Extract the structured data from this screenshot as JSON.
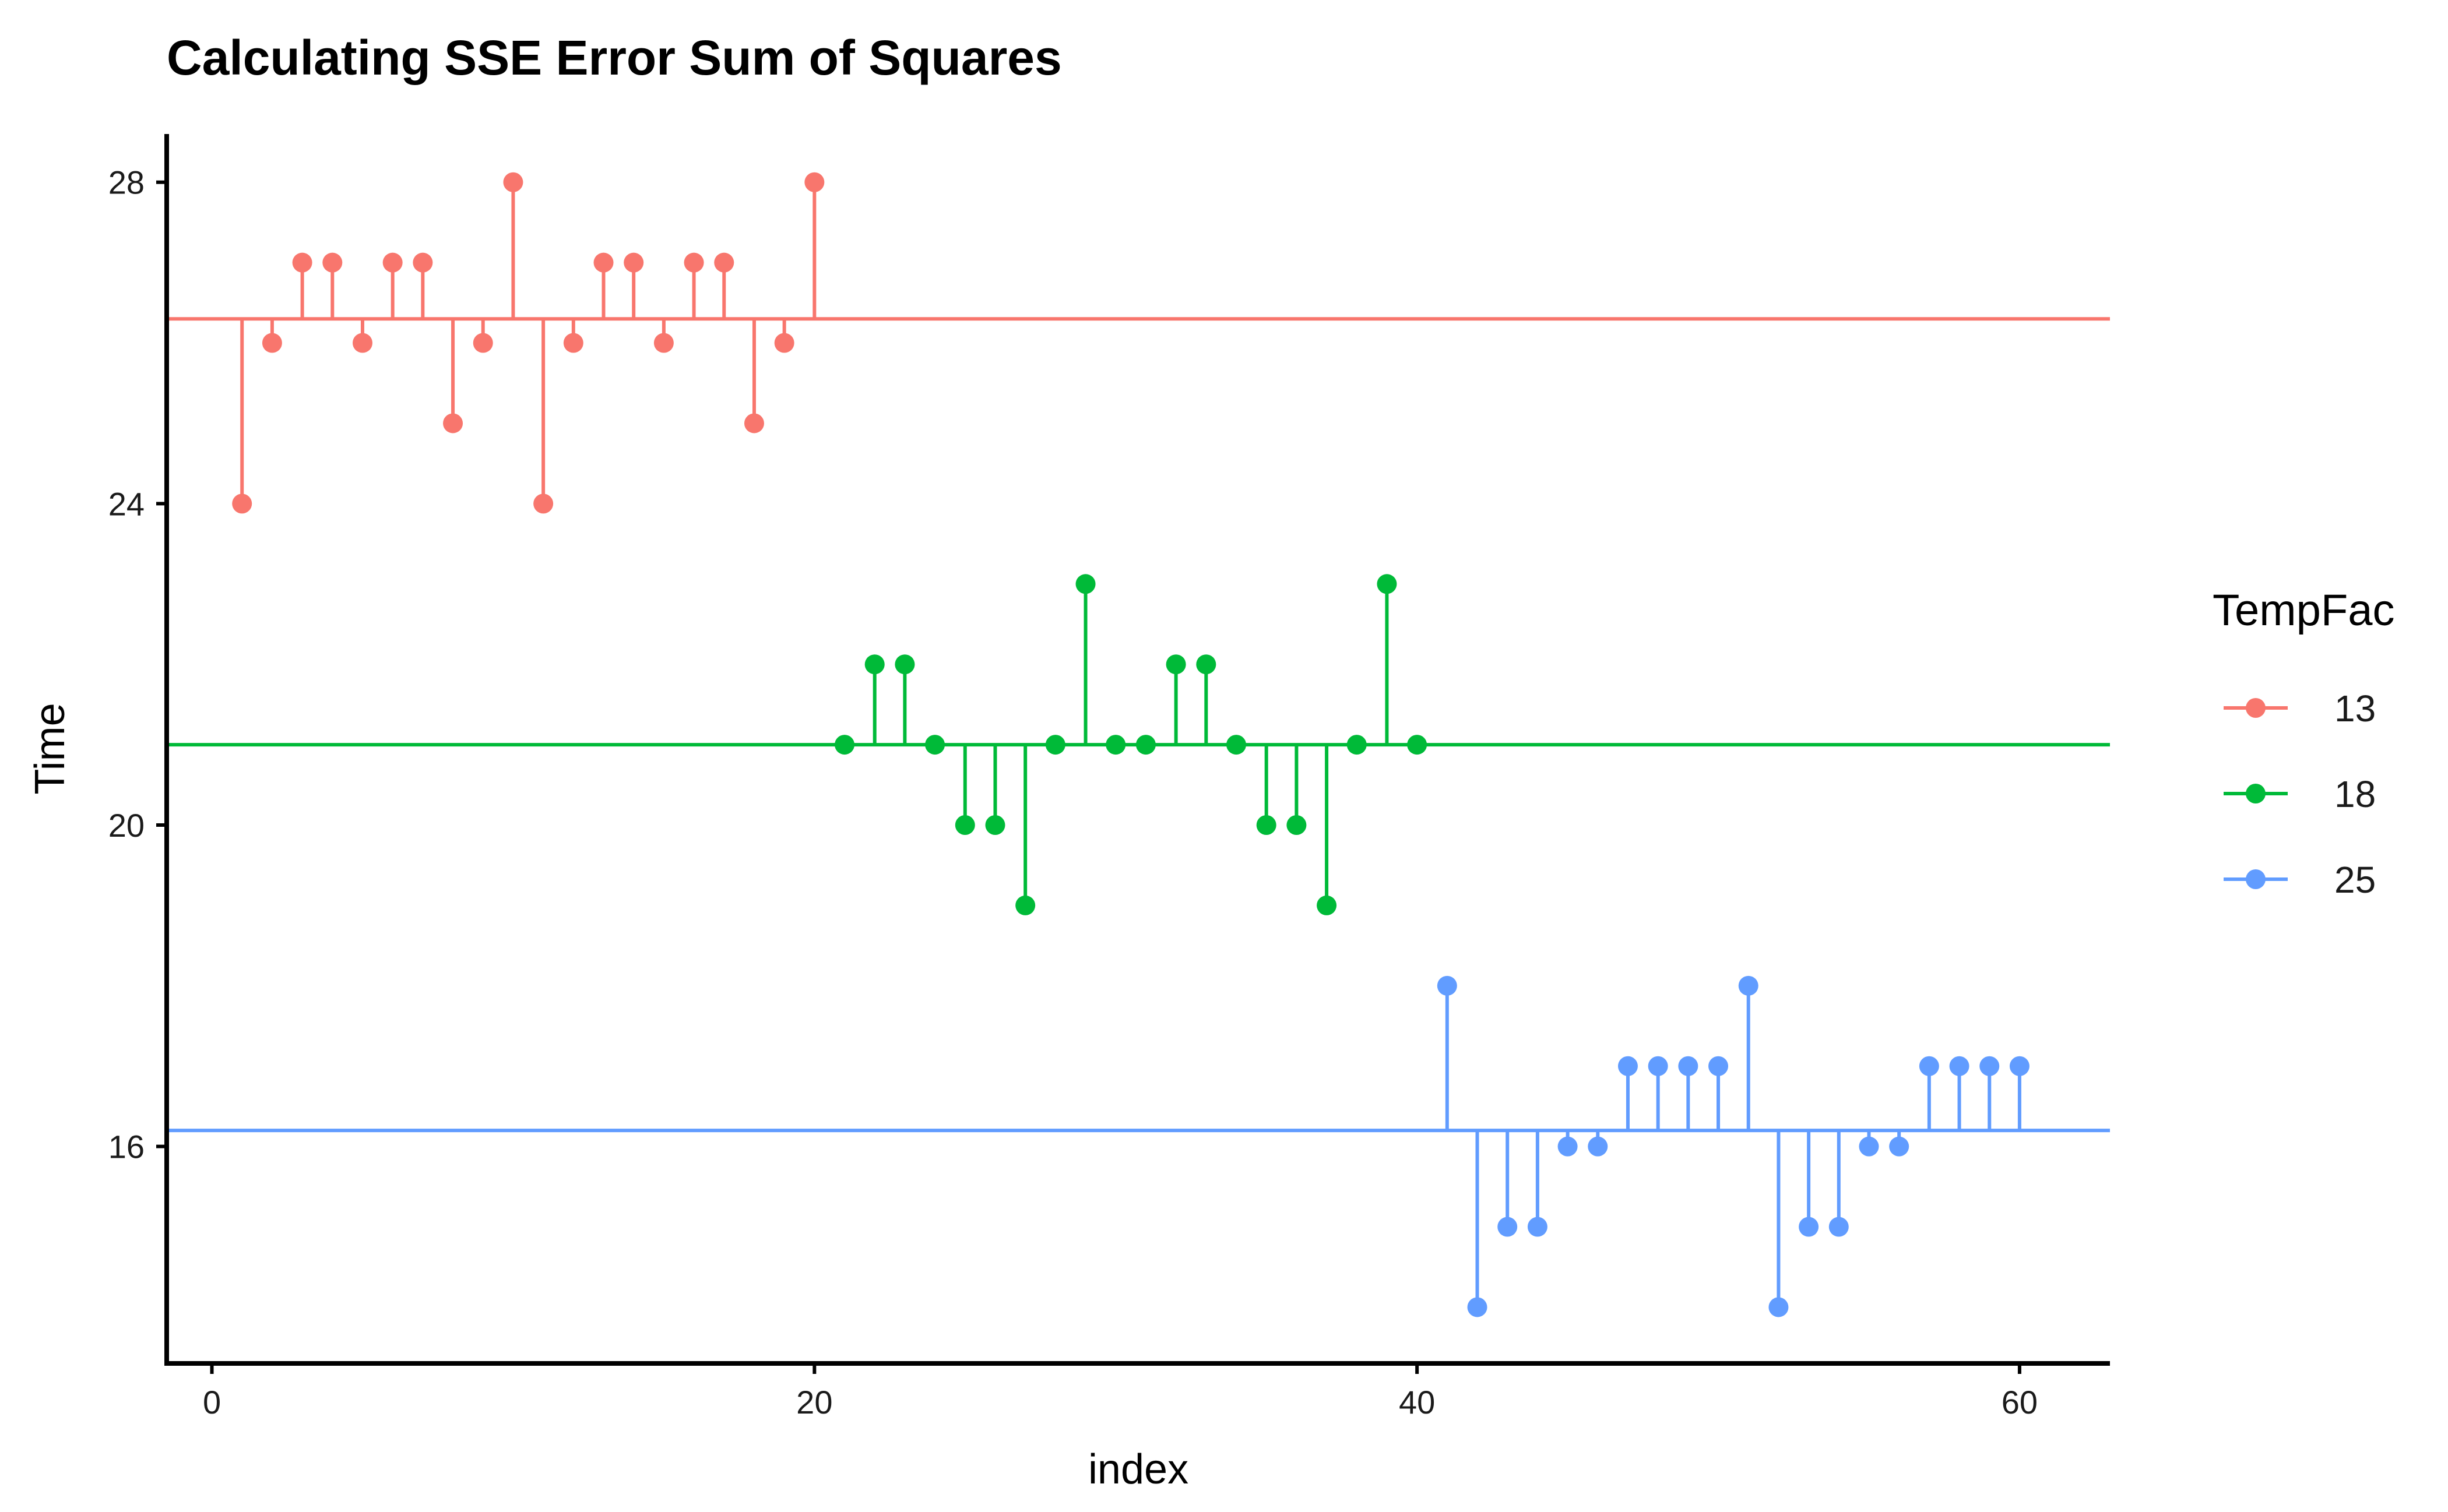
{
  "chart_data": {
    "type": "scatter",
    "title": "Calculating SSE Error Sum of Squares",
    "xlabel": "index",
    "ylabel": "Time",
    "xlim": [
      -1.5,
      63
    ],
    "ylim": [
      13.3,
      28.6
    ],
    "x_ticks": [
      0,
      20,
      40,
      60
    ],
    "y_ticks": [
      16,
      20,
      24,
      28
    ],
    "grid": false,
    "legend": {
      "title": "TempFac",
      "position": "right"
    },
    "series": [
      {
        "name": "13",
        "color": "#F8766D",
        "group_mean": 26.3,
        "x": [
          1,
          2,
          3,
          4,
          5,
          6,
          7,
          8,
          9,
          10,
          11,
          12,
          13,
          14,
          15,
          16,
          17,
          18,
          19,
          20
        ],
        "values": [
          24,
          26,
          27,
          27,
          26,
          27,
          27,
          25,
          26,
          28,
          24,
          26,
          27,
          27,
          26,
          27,
          27,
          25,
          26,
          28
        ]
      },
      {
        "name": "18",
        "color": "#00BA38",
        "group_mean": 21.0,
        "x": [
          21,
          22,
          23,
          24,
          25,
          26,
          27,
          28,
          29,
          30,
          31,
          32,
          33,
          34,
          35,
          36,
          37,
          38,
          39,
          40
        ],
        "values": [
          21,
          22,
          22,
          21,
          20,
          20,
          19,
          21,
          23,
          21,
          21,
          22,
          22,
          21,
          20,
          20,
          19,
          21,
          23,
          21
        ]
      },
      {
        "name": "25",
        "color": "#619CFF",
        "group_mean": 16.2,
        "x": [
          41,
          42,
          43,
          44,
          45,
          46,
          47,
          48,
          49,
          50,
          51,
          52,
          53,
          54,
          55,
          56,
          57,
          58,
          59,
          60
        ],
        "values": [
          18,
          14,
          15,
          15,
          16,
          16,
          17,
          17,
          17,
          17,
          18,
          14,
          15,
          15,
          16,
          16,
          17,
          17,
          17,
          17
        ]
      }
    ]
  }
}
